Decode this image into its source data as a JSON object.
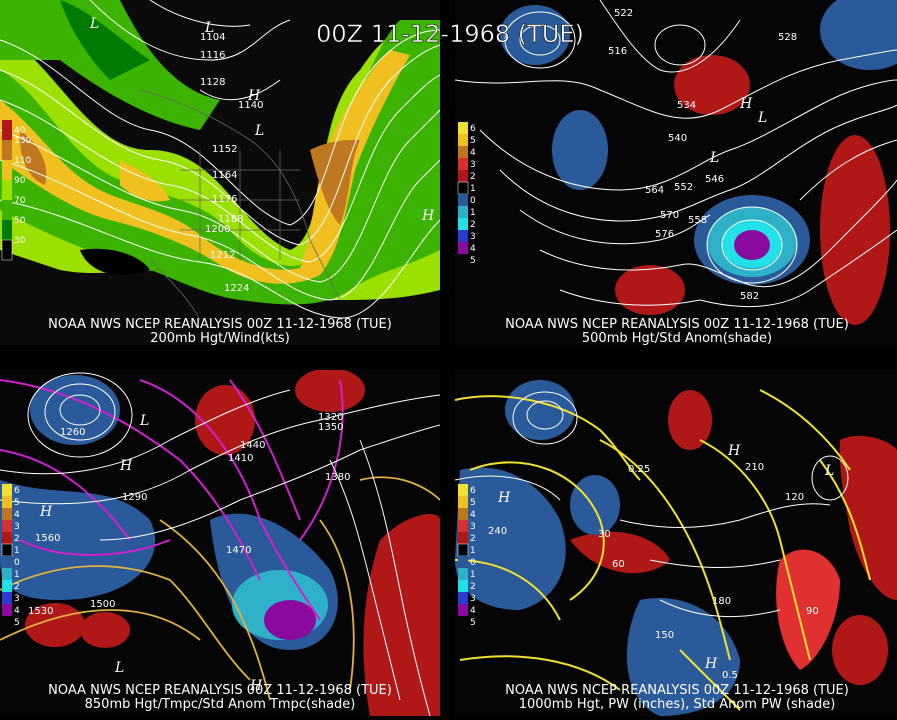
{
  "title": "00Z 11-12-1968 (TUE)",
  "panels": [
    {
      "id": "200mb",
      "caption1": "NOAA NWS NCEP REANALYSIS 00Z 11-12-1968 (TUE)",
      "caption2": "200mb Hgt/Wind(kts)",
      "legend": [
        "40",
        "130",
        "110",
        "90",
        "70",
        "50",
        "30"
      ],
      "heights": [
        "1104",
        "1116",
        "1128",
        "1140",
        "1152",
        "1164",
        "1176",
        "1188",
        "1200",
        "1212",
        "1224"
      ]
    },
    {
      "id": "500mb",
      "caption1": "NOAA NWS NCEP REANALYSIS 00Z 11-12-1968 (TUE)",
      "caption2": "500mb Hgt/Std Anom(shade)",
      "legend": [
        "6",
        "5",
        "4",
        "3",
        "2",
        "1",
        "0",
        "1",
        "2",
        "3",
        "4",
        "5"
      ],
      "heights": [
        "522",
        "516",
        "528",
        "534",
        "540",
        "546",
        "552",
        "558",
        "564",
        "570",
        "576",
        "582"
      ]
    },
    {
      "id": "850mb",
      "caption1": "NOAA NWS NCEP REANALYSIS 00Z 11-12-1968 (TUE)",
      "caption2": "850mb Hgt/Tmpc/Std Anom Tmpc(shade)",
      "legend": [
        "6",
        "5",
        "4",
        "3",
        "2",
        "1",
        "0",
        "1",
        "2",
        "3",
        "4",
        "5"
      ],
      "heights": [
        "1260",
        "1290",
        "1320",
        "1350",
        "1380",
        "1410",
        "1440",
        "1470",
        "1500",
        "1530",
        "1560"
      ]
    },
    {
      "id": "1000mb",
      "caption1": "NOAA NWS NCEP REANALYSIS 00Z 11-12-1968 (TUE)",
      "caption2": "1000mb Hgt, PW (inches), Std Anom PW (shade)",
      "legend": [
        "6",
        "5",
        "4",
        "3",
        "2",
        "1",
        "0",
        "1",
        "2",
        "3",
        "4",
        "5"
      ],
      "heights": [
        "30",
        "60",
        "90",
        "120",
        "150",
        "180",
        "210",
        "240",
        "0.25",
        "0.5"
      ]
    }
  ],
  "colors": {
    "wind_light": "#9be000",
    "wind_mid": "#3cb300",
    "wind_dark": "#007a00",
    "jet": "#f0c020",
    "jet_core": "#c07820",
    "warm": "#b01818",
    "cold": "#2a5a9a",
    "cold2": "#22c0d8",
    "cold3": "#8a0aa0",
    "yellow_contour": "#f0e030",
    "magenta": "#d020d0"
  }
}
